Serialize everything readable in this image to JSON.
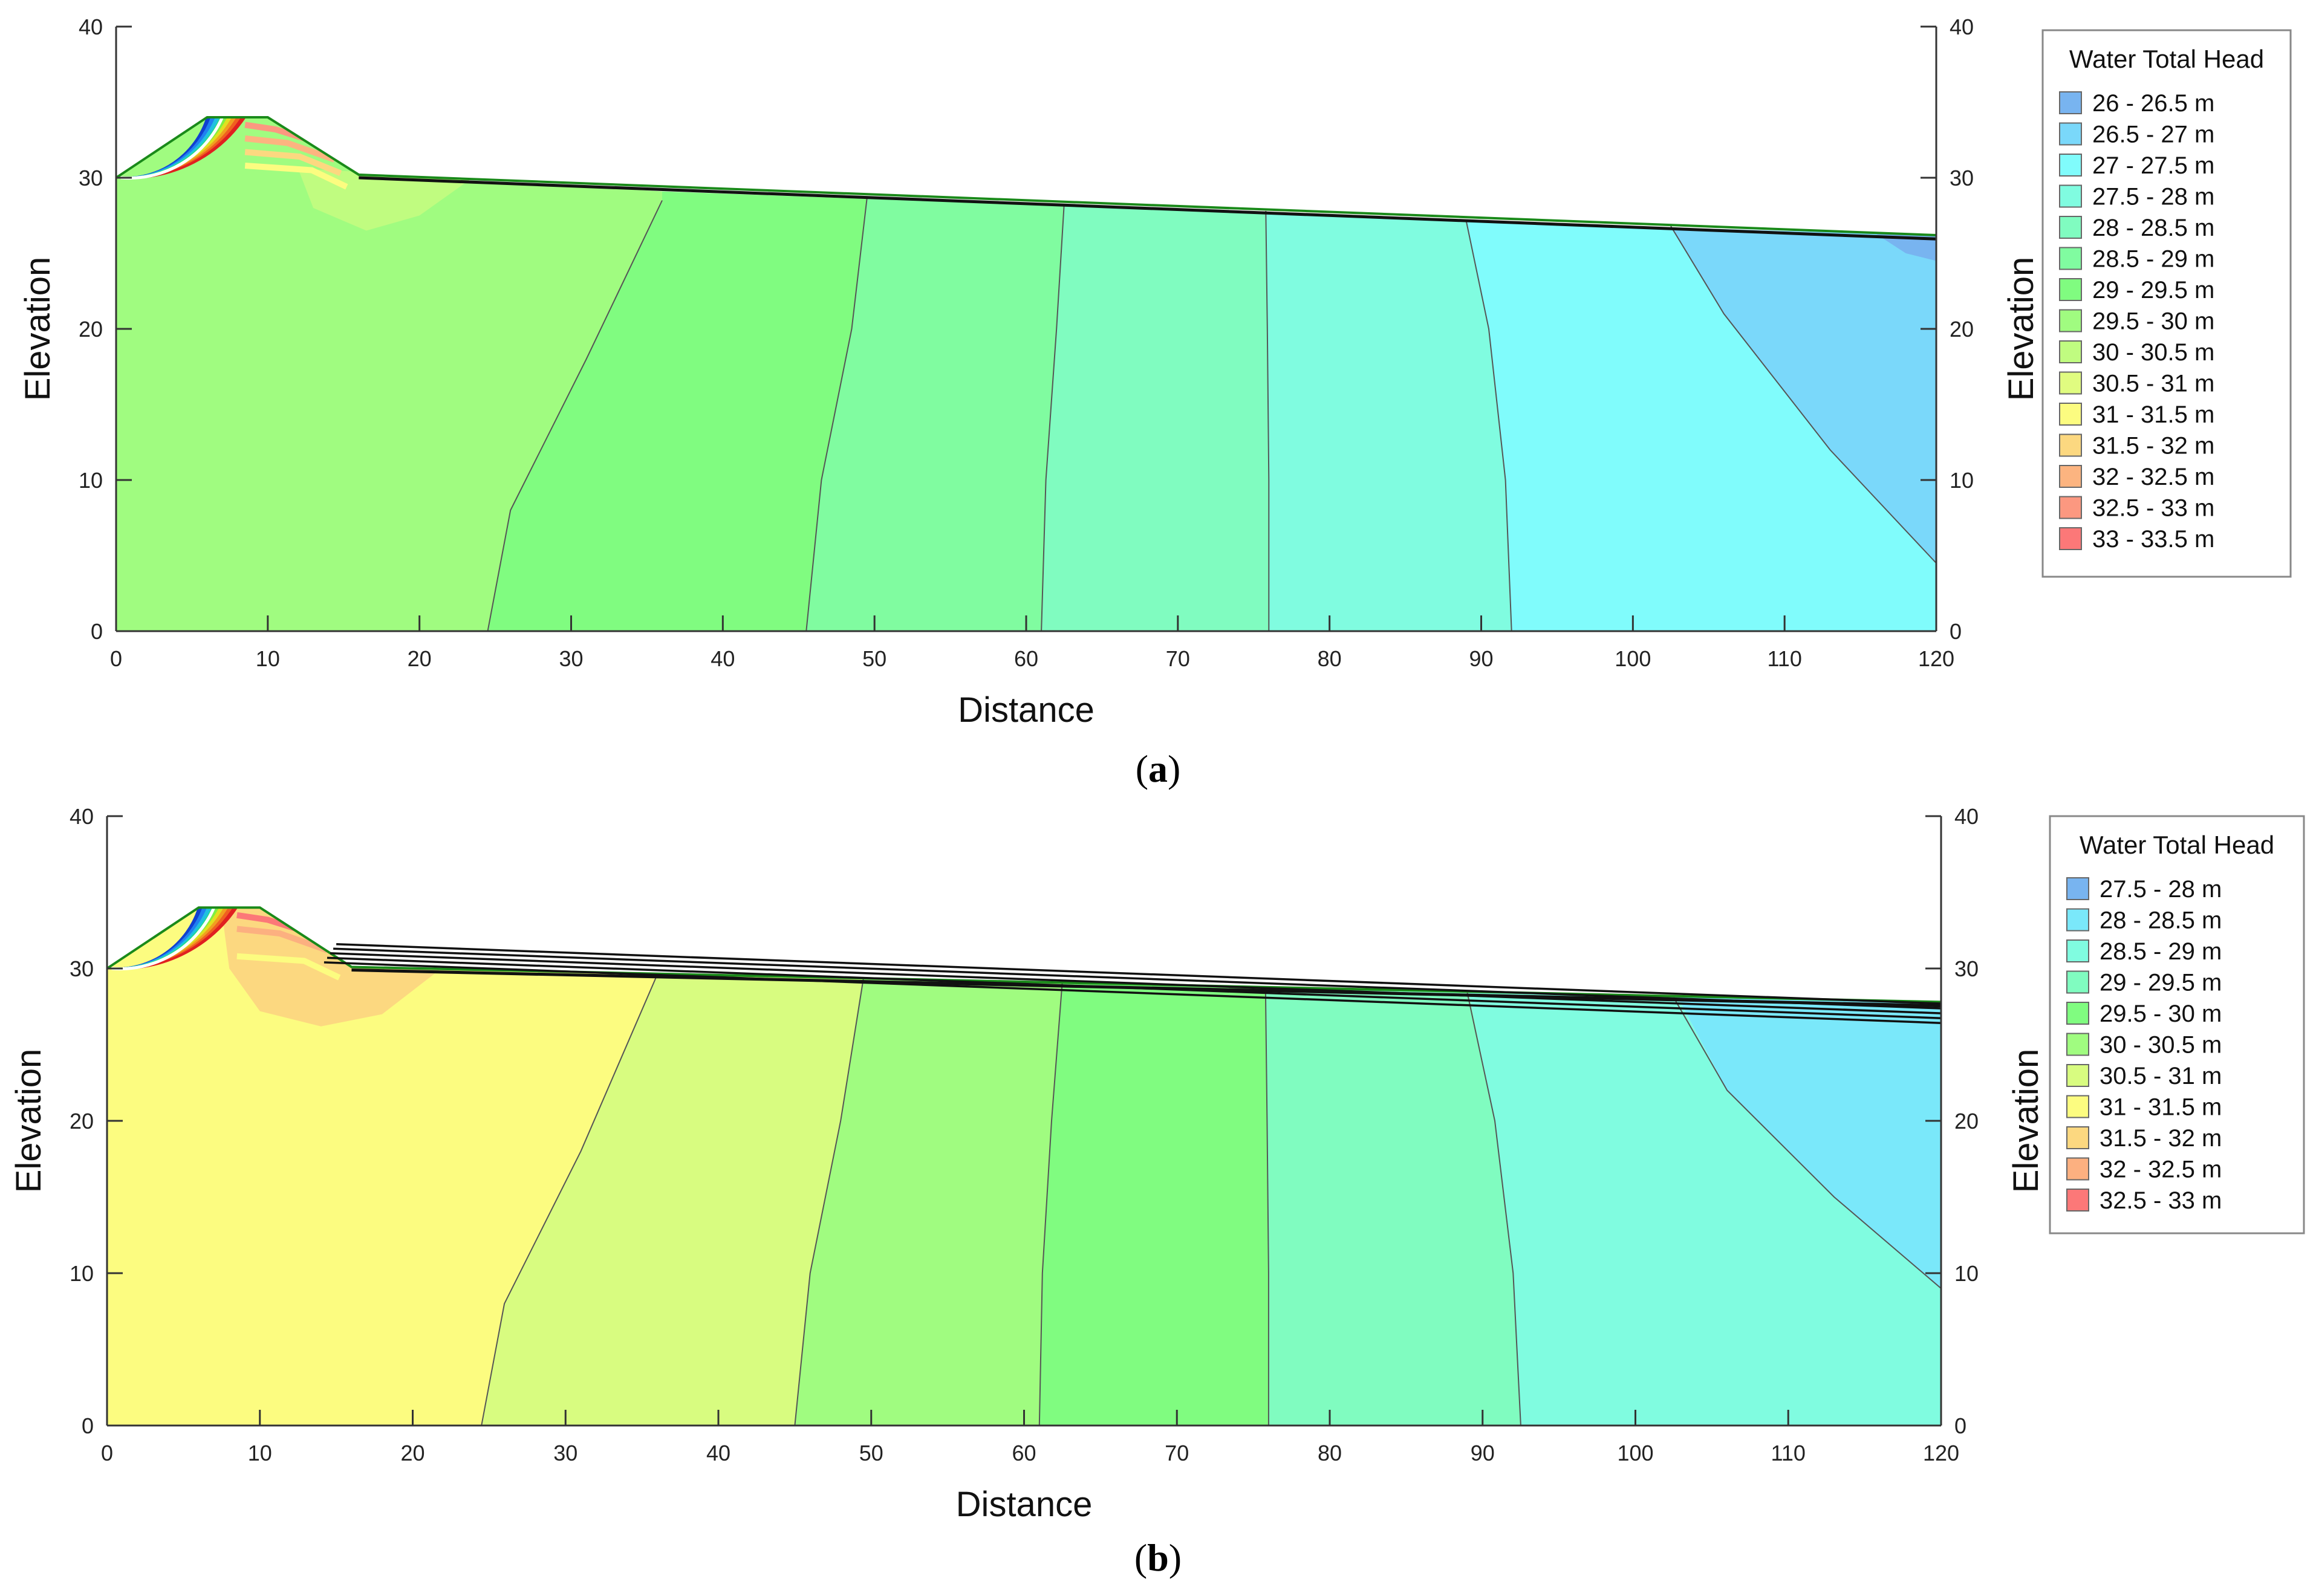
{
  "chart_data": [
    {
      "id": "a",
      "type": "area",
      "caption": "a",
      "xlabel": "Distance",
      "ylabel": "Elevation",
      "xlim": [
        0,
        120
      ],
      "ylim": [
        0,
        40
      ],
      "xticks": [
        0,
        10,
        20,
        30,
        40,
        50,
        60,
        70,
        80,
        90,
        100,
        110,
        120
      ],
      "yticks": [
        0,
        10,
        20,
        30,
        40
      ],
      "legend_title": "Water Total Head",
      "legend_position": "right",
      "legend": [
        {
          "label": "26 - 26.5 m",
          "color": "#78b4f0"
        },
        {
          "label": "26.5 - 27 m",
          "color": "#7ad8fa"
        },
        {
          "label": "27 - 27.5 m",
          "color": "#80fcfc"
        },
        {
          "label": "27.5 - 28 m",
          "color": "#80fce0"
        },
        {
          "label": "28 - 28.5 m",
          "color": "#80fcc0"
        },
        {
          "label": "28.5 - 29 m",
          "color": "#80fca0"
        },
        {
          "label": "29 - 29.5 m",
          "color": "#80fc80"
        },
        {
          "label": "29.5 - 30 m",
          "color": "#a0fc80"
        },
        {
          "label": "30 - 30.5 m",
          "color": "#c0fc80"
        },
        {
          "label": "30.5 - 31 m",
          "color": "#e0fc80"
        },
        {
          "label": "31 - 31.5 m",
          "color": "#fcfc80"
        },
        {
          "label": "31.5 - 32 m",
          "color": "#fcd880"
        },
        {
          "label": "32 - 32.5 m",
          "color": "#fcb480"
        },
        {
          "label": "32.5 - 33 m",
          "color": "#fc9880"
        },
        {
          "label": "33 - 33.5 m",
          "color": "#fc7878"
        }
      ],
      "surface": [
        [
          0,
          30
        ],
        [
          6,
          34
        ],
        [
          10,
          34
        ],
        [
          16,
          30.2
        ],
        [
          120,
          26.2
        ]
      ],
      "contours": [
        {
          "head": 29.5,
          "points": [
            [
              24.5,
              0
            ],
            [
              26,
              8
            ],
            [
              31,
              18
            ],
            [
              36,
              28.5
            ]
          ]
        },
        {
          "head": 29,
          "points": [
            [
              45.5,
              0
            ],
            [
              46.5,
              10
            ],
            [
              48.5,
              20
            ],
            [
              49.5,
              28.6
            ]
          ]
        },
        {
          "head": 28.5,
          "points": [
            [
              61,
              0
            ],
            [
              61.3,
              10
            ],
            [
              62,
              20
            ],
            [
              62.5,
              28.2
            ]
          ]
        },
        {
          "head": 28,
          "points": [
            [
              76,
              0
            ],
            [
              76,
              10
            ],
            [
              75.9,
              20
            ],
            [
              75.8,
              27.8
            ]
          ]
        },
        {
          "head": 27.5,
          "points": [
            [
              92,
              0
            ],
            [
              91.6,
              10
            ],
            [
              90.5,
              20
            ],
            [
              89,
              27.2
            ]
          ]
        },
        {
          "head": 27,
          "points": [
            [
              120,
              4.5
            ],
            [
              113,
              12
            ],
            [
              106,
              21
            ],
            [
              102.5,
              26.8
            ]
          ]
        }
      ],
      "zones": [
        {
          "color": "#a0fc80",
          "points": [
            [
              0,
              0
            ],
            [
              24.5,
              0
            ],
            [
              26,
              8
            ],
            [
              31,
              18
            ],
            [
              36,
              28.5
            ],
            [
              36,
              29.1
            ],
            [
              16,
              30.2
            ],
            [
              10,
              34
            ],
            [
              6,
              34
            ],
            [
              0,
              30
            ]
          ]
        },
        {
          "color": "#80fc80",
          "points": [
            [
              24.5,
              0
            ],
            [
              45.5,
              0
            ],
            [
              46.5,
              10
            ],
            [
              48.5,
              20
            ],
            [
              49.5,
              28.6
            ],
            [
              49.5,
              28.6
            ],
            [
              36,
              29.1
            ],
            [
              36,
              28.5
            ],
            [
              31,
              18
            ],
            [
              26,
              8
            ]
          ]
        },
        {
          "color": "#80fca0",
          "points": [
            [
              45.5,
              0
            ],
            [
              61,
              0
            ],
            [
              61.3,
              10
            ],
            [
              62,
              20
            ],
            [
              62.5,
              28.2
            ],
            [
              49.5,
              28.6
            ],
            [
              48.5,
              20
            ],
            [
              46.5,
              10
            ]
          ]
        },
        {
          "color": "#80fcc0",
          "points": [
            [
              61,
              0
            ],
            [
              76,
              0
            ],
            [
              76,
              10
            ],
            [
              75.9,
              20
            ],
            [
              75.8,
              27.7
            ],
            [
              62.5,
              28.2
            ],
            [
              62,
              20
            ],
            [
              61.3,
              10
            ]
          ]
        },
        {
          "color": "#80fce0",
          "points": [
            [
              76,
              0
            ],
            [
              92,
              0
            ],
            [
              91.6,
              10
            ],
            [
              90.5,
              20
            ],
            [
              89,
              27.2
            ],
            [
              75.8,
              27.7
            ],
            [
              75.9,
              20
            ],
            [
              76,
              10
            ]
          ]
        },
        {
          "color": "#80fcfc",
          "points": [
            [
              92,
              0
            ],
            [
              120,
              0
            ],
            [
              120,
              4.5
            ],
            [
              113,
              12
            ],
            [
              106,
              21
            ],
            [
              102.5,
              26.7
            ],
            [
              89,
              27.2
            ],
            [
              90.5,
              20
            ],
            [
              91.6,
              10
            ]
          ]
        },
        {
          "color": "#7ad8fa",
          "points": [
            [
              120,
              4.5
            ],
            [
              120,
              26.2
            ],
            [
              102.5,
              26.7
            ],
            [
              106,
              21
            ],
            [
              113,
              12
            ]
          ]
        },
        {
          "color": "#78b4f0",
          "points": [
            [
              116,
              26.3
            ],
            [
              118,
              25
            ],
            [
              120,
              24.5
            ],
            [
              120,
              26.2
            ]
          ]
        },
        {
          "color": "#c0fc80",
          "points": [
            [
              12,
              30.6
            ],
            [
              13,
              28
            ],
            [
              16.5,
              26.5
            ],
            [
              20,
              27.5
            ],
            [
              23.5,
              30
            ]
          ]
        }
      ],
      "crest_gradient": [
        "#fc9880",
        "#fcb480",
        "#fcd880",
        "#fcfc80"
      ]
    },
    {
      "id": "b",
      "type": "area",
      "caption": "b",
      "xlabel": "Distance",
      "ylabel": "Elevation",
      "xlim": [
        0,
        120
      ],
      "ylim": [
        0,
        40
      ],
      "xticks": [
        0,
        10,
        20,
        30,
        40,
        50,
        60,
        70,
        80,
        90,
        100,
        110,
        120
      ],
      "yticks": [
        0,
        10,
        20,
        30,
        40
      ],
      "legend_title": "Water Total Head",
      "legend_position": "right",
      "legend": [
        {
          "label": "27.5 - 28 m",
          "color": "#78b4f0"
        },
        {
          "label": "28 - 28.5 m",
          "color": "#7ae8fa"
        },
        {
          "label": "28.5 - 29 m",
          "color": "#80fce0"
        },
        {
          "label": "29 - 29.5 m",
          "color": "#80fcc0"
        },
        {
          "label": "29.5 - 30 m",
          "color": "#80fc80"
        },
        {
          "label": "30 - 30.5 m",
          "color": "#a0fc80"
        },
        {
          "label": "30.5 - 31 m",
          "color": "#d8fc80"
        },
        {
          "label": "31 - 31.5 m",
          "color": "#fcfc80"
        },
        {
          "label": "31.5 - 32 m",
          "color": "#fcd880"
        },
        {
          "label": "32 - 32.5 m",
          "color": "#fcb080"
        },
        {
          "label": "32.5 - 33 m",
          "color": "#fc7878"
        }
      ],
      "surface": [
        [
          0,
          30
        ],
        [
          6,
          34
        ],
        [
          10,
          34
        ],
        [
          16,
          30.1
        ],
        [
          120,
          27.8
        ]
      ],
      "contours": [
        {
          "head": 31,
          "points": [
            [
              24.5,
              0
            ],
            [
              26,
              8
            ],
            [
              31,
              18
            ],
            [
              36,
              29.6
            ]
          ]
        },
        {
          "head": 30.5,
          "points": [
            [
              45,
              0
            ],
            [
              46,
              10
            ],
            [
              48,
              20
            ],
            [
              49.5,
              29.4
            ]
          ]
        },
        {
          "head": 30,
          "points": [
            [
              61,
              0
            ],
            [
              61.2,
              10
            ],
            [
              61.8,
              20
            ],
            [
              62.5,
              29.1
            ]
          ]
        },
        {
          "head": 29.5,
          "points": [
            [
              76,
              0
            ],
            [
              76,
              10
            ],
            [
              75.9,
              20
            ],
            [
              75.8,
              28.8
            ]
          ]
        },
        {
          "head": 29,
          "points": [
            [
              92.5,
              0
            ],
            [
              92,
              10
            ],
            [
              90.8,
              20
            ],
            [
              89,
              28.4
            ]
          ]
        },
        {
          "head": 28.5,
          "points": [
            [
              120,
              9
            ],
            [
              113,
              15
            ],
            [
              106,
              22
            ],
            [
              102.5,
              28.1
            ]
          ]
        }
      ],
      "zones": [
        {
          "color": "#fcfc80",
          "points": [
            [
              0,
              0
            ],
            [
              24.5,
              0
            ],
            [
              26,
              8
            ],
            [
              31,
              18
            ],
            [
              36,
              29.6
            ],
            [
              36,
              30.1
            ],
            [
              16,
              30.1
            ],
            [
              10,
              34
            ],
            [
              6,
              34
            ],
            [
              0,
              30
            ]
          ]
        },
        {
          "color": "#d8fc80",
          "points": [
            [
              24.5,
              0
            ],
            [
              45,
              0
            ],
            [
              46,
              10
            ],
            [
              48,
              20
            ],
            [
              49.5,
              29.4
            ],
            [
              49.5,
              29.8
            ],
            [
              36,
              30.1
            ],
            [
              36,
              29.6
            ],
            [
              31,
              18
            ],
            [
              26,
              8
            ]
          ]
        },
        {
          "color": "#a0fc80",
          "points": [
            [
              45,
              0
            ],
            [
              61,
              0
            ],
            [
              61.2,
              10
            ],
            [
              61.8,
              20
            ],
            [
              62.5,
              29.5
            ],
            [
              49.5,
              29.8
            ],
            [
              48,
              20
            ],
            [
              46,
              10
            ]
          ]
        },
        {
          "color": "#80fc80",
          "points": [
            [
              61,
              0
            ],
            [
              76,
              0
            ],
            [
              76,
              10
            ],
            [
              75.9,
              20
            ],
            [
              75.8,
              29.2
            ],
            [
              62.5,
              29.5
            ],
            [
              61.8,
              20
            ],
            [
              61.2,
              10
            ]
          ]
        },
        {
          "color": "#80fcc0",
          "points": [
            [
              76,
              0
            ],
            [
              92.5,
              0
            ],
            [
              92,
              10
            ],
            [
              90.8,
              20
            ],
            [
              89,
              28.9
            ],
            [
              75.8,
              29.2
            ],
            [
              75.9,
              20
            ],
            [
              76,
              10
            ]
          ]
        },
        {
          "color": "#80fce0",
          "points": [
            [
              92.5,
              0
            ],
            [
              120,
              0
            ],
            [
              120,
              9
            ],
            [
              113,
              15
            ],
            [
              106,
              22
            ],
            [
              102.5,
              28.6
            ],
            [
              89,
              28.9
            ],
            [
              90.8,
              20
            ],
            [
              92,
              10
            ]
          ]
        },
        {
          "color": "#7ae8fa",
          "points": [
            [
              120,
              9
            ],
            [
              120,
              27.8
            ],
            [
              102.5,
              28.6
            ],
            [
              106,
              22
            ],
            [
              113,
              15
            ]
          ]
        },
        {
          "color": "#fcd880",
          "points": [
            [
              7.5,
              33.8
            ],
            [
              8,
              30
            ],
            [
              10,
              27.2
            ],
            [
              14,
              26.2
            ],
            [
              18,
              27
            ],
            [
              22,
              30.1
            ],
            [
              16,
              30.1
            ],
            [
              10,
              34
            ]
          ]
        }
      ],
      "crest_gradient": [
        "#fc7878",
        "#fcb080",
        "#fcd880",
        "#fcfc80"
      ]
    }
  ]
}
